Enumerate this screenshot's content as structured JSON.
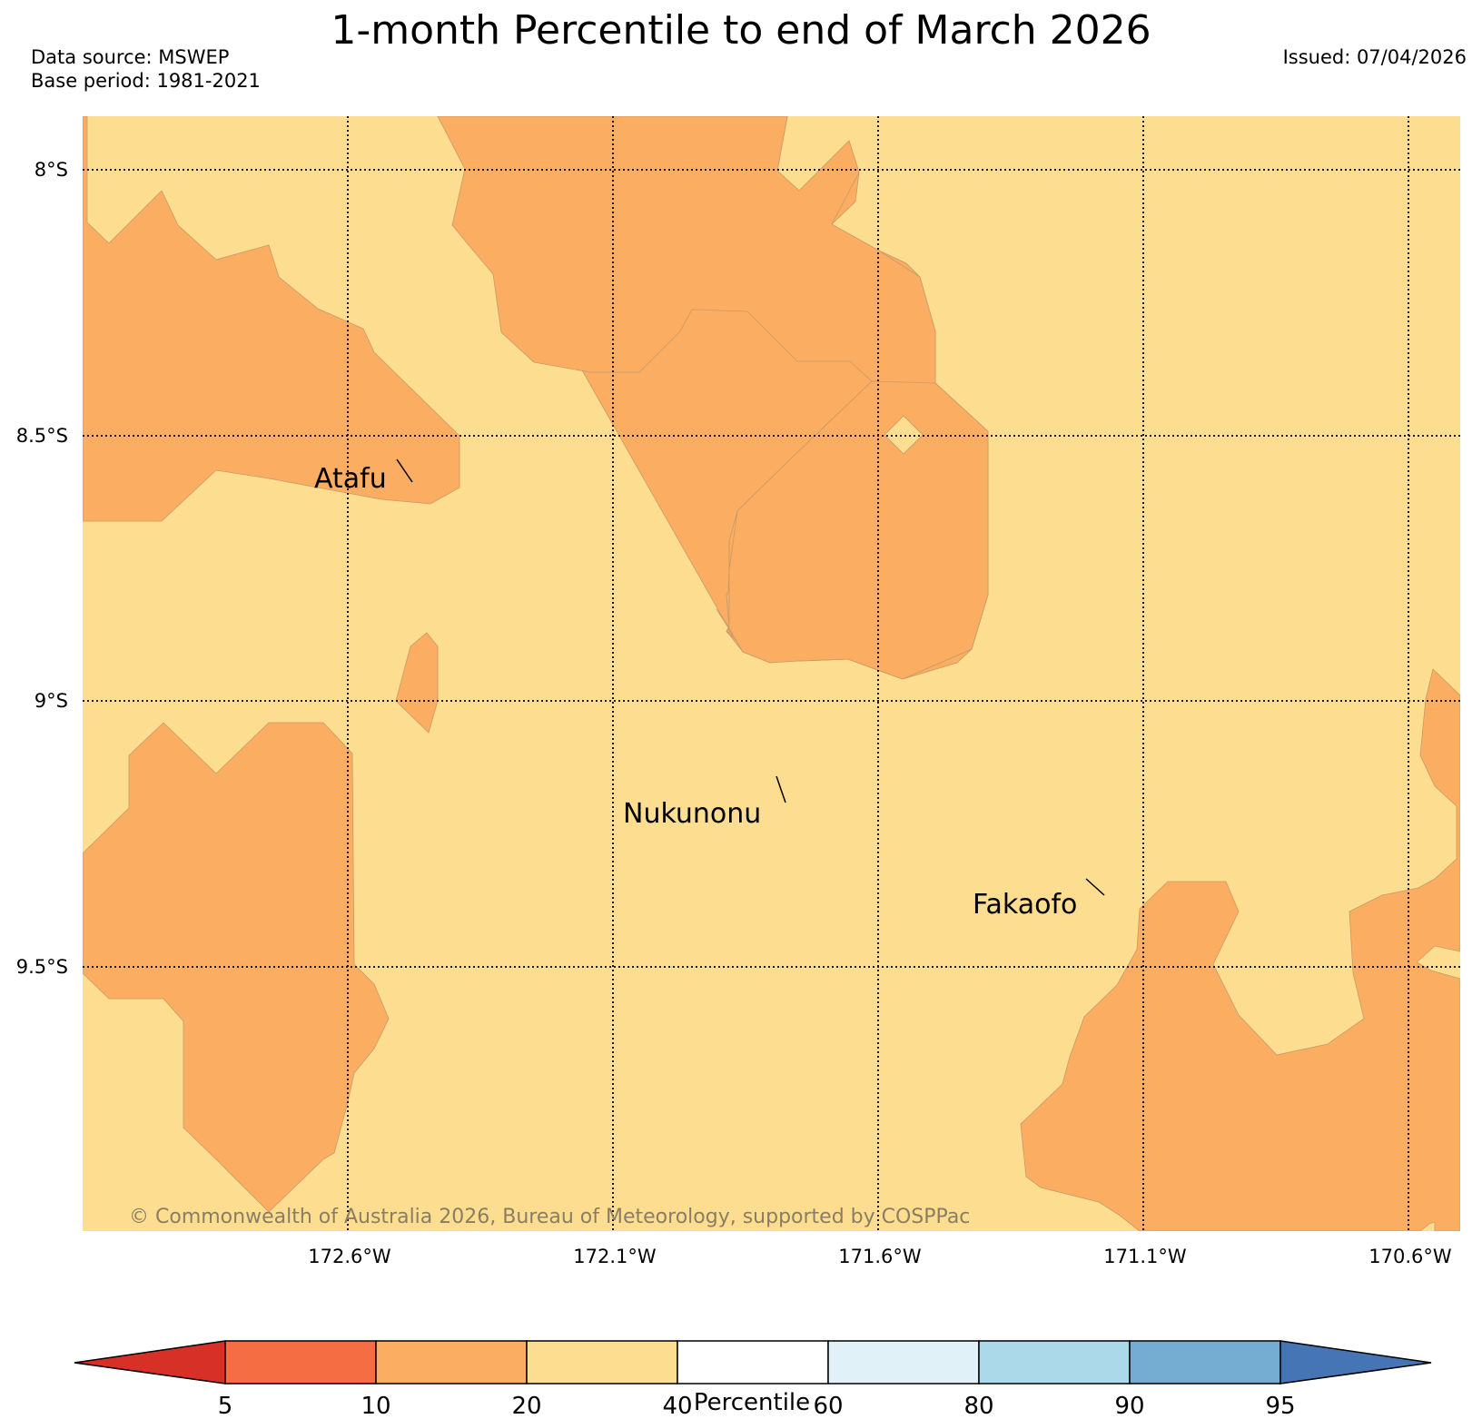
{
  "header": {
    "title": "1-month Percentile to end of March 2026",
    "data_source": "Data source: MSWEP",
    "base_period": "Base period: 1981-2021",
    "issued": "Issued: 07/04/2026"
  },
  "map": {
    "lat_labels": [
      "8°S",
      "8.5°S",
      "9°S",
      "9.5°S"
    ],
    "lon_labels": [
      "172.6°W",
      "172.1°W",
      "171.6°W",
      "171.1°W",
      "170.6°W"
    ],
    "places": {
      "atafu": "Atafu",
      "nukunonu": "Nukunonu",
      "fakaofo": "Fakaofo"
    },
    "copyright": "© Commonwealth of Australia 2026, Bureau of Meteorology, supported by COSPPac",
    "colors": {
      "band_20_40": "#fddd8f",
      "band_10_20": "#fbad62"
    }
  },
  "colorbar": {
    "title": "Percentile",
    "ticks": [
      "5",
      "10",
      "20",
      "40",
      "60",
      "80",
      "90",
      "95"
    ],
    "colors": [
      "#d73027",
      "#f46d43",
      "#fbad62",
      "#fddd8f",
      "#ffffff",
      "#e0f2f8",
      "#abd9e9",
      "#74add1",
      "#4575b4"
    ]
  }
}
